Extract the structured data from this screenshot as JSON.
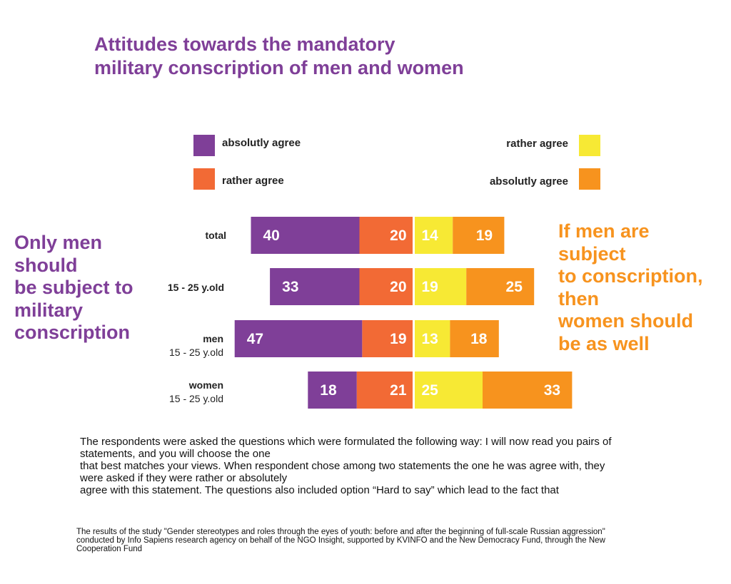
{
  "title": {
    "line1": "Attitudes towards the mandatory",
    "line2": "military conscription of men and women"
  },
  "legend": {
    "left": [
      {
        "label": "absolutly agree",
        "color": "#7f3f98"
      },
      {
        "label": "rather agree",
        "color": "#f26a35"
      }
    ],
    "right": [
      {
        "label": "rather agree",
        "color": "#f7e934"
      },
      {
        "label": "absolutly agree",
        "color": "#f7931e"
      }
    ]
  },
  "side_left": {
    "lines": [
      "Only men",
      "should",
      "be subject to",
      "military",
      "conscription"
    ]
  },
  "side_right": {
    "lines": [
      "If men are",
      "subject",
      "to conscription,",
      "then",
      "women should",
      "be as well"
    ]
  },
  "rows": [
    {
      "main": "total",
      "sub": ""
    },
    {
      "main": "15 - 25 y.old",
      "sub": ""
    },
    {
      "main": "men",
      "sub": "15 - 25 y.old"
    },
    {
      "main": "women",
      "sub": "15 - 25 y.old"
    }
  ],
  "chart_data": {
    "type": "bar",
    "orientation": "horizontal-diverging",
    "categories": [
      "total",
      "15 - 25 y.old",
      "men 15 - 25 y.old",
      "women 15 - 25 y.old"
    ],
    "series": [
      {
        "name": "absolutly agree",
        "side": "left",
        "color": "#7f3f98",
        "values": [
          40,
          33,
          47,
          18
        ]
      },
      {
        "name": "rather agree",
        "side": "left",
        "color": "#f26a35",
        "values": [
          20,
          20,
          19,
          21
        ]
      },
      {
        "name": "rather agree",
        "side": "right",
        "color": "#f7e934",
        "values": [
          14,
          19,
          13,
          25
        ]
      },
      {
        "name": "absolutly agree",
        "side": "right",
        "color": "#f7931e",
        "values": [
          19,
          25,
          18,
          33
        ]
      }
    ]
  },
  "note": {
    "lines": [
      "The respondents were asked the questions which were formulated the following way: I will now read you pairs of",
      "statements, and you will choose the one",
      "that best matches your views. When respondent chose among two statements the one he was agree with, they",
      "were asked if they were rather or absolutely",
      "agree with this statement. The questions also included option “Hard to say” which lead to the fact that"
    ]
  },
  "source": {
    "lines": [
      "The results of the study \"Gender stereotypes and roles through the eyes of youth: before and after the beginning of full-scale Russian aggression\"",
      "conducted by Info Sapiens research agency on behalf of the NGO Insight, supported by KVINFO and the New Democracy Fund, through the New",
      "Cooperation Fund"
    ]
  }
}
